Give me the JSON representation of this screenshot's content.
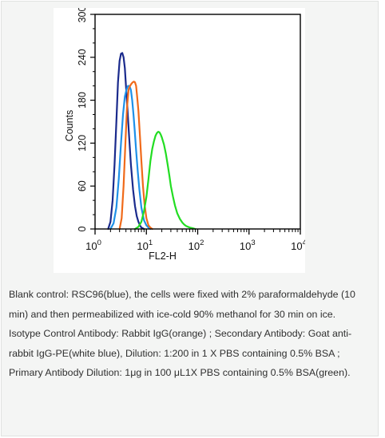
{
  "chart_data": {
    "type": "line",
    "xscale": "log",
    "xlim": [
      1,
      10000
    ],
    "ylim": [
      0,
      300
    ],
    "xlabel": "FL2-H",
    "ylabel": "Counts",
    "grid": false,
    "legend": "none",
    "y_ticks": [
      "0",
      "60",
      "120",
      "180",
      "240",
      "300"
    ],
    "x_ticks": [
      {
        "base": "10",
        "exp": "0"
      },
      {
        "base": "10",
        "exp": "1"
      },
      {
        "base": "10",
        "exp": "2"
      },
      {
        "base": "10",
        "exp": "3"
      },
      {
        "base": "10",
        "exp": "4"
      }
    ],
    "series": [
      {
        "color": "#1a2a8c",
        "x": [
          1.8,
          2.0,
          2.2,
          2.4,
          2.6,
          2.8,
          3.0,
          3.2,
          3.4,
          3.6,
          3.8,
          4.0,
          4.3,
          4.6,
          5.0,
          5.5,
          6.0,
          6.5,
          7.0,
          7.5,
          8.0,
          9.0
        ],
        "y": [
          0,
          10,
          40,
          90,
          150,
          205,
          235,
          245,
          246,
          240,
          225,
          200,
          165,
          130,
          90,
          55,
          32,
          18,
          10,
          5,
          2,
          0
        ]
      },
      {
        "color": "#1e90e8",
        "x": [
          2.0,
          2.3,
          2.6,
          2.9,
          3.2,
          3.5,
          3.8,
          4.1,
          4.4,
          4.7,
          5.0,
          5.3,
          5.6,
          5.9,
          6.3,
          6.8,
          7.3,
          8.0,
          9.0,
          10.0,
          11.0,
          12.0
        ],
        "y": [
          0,
          8,
          30,
          70,
          120,
          160,
          185,
          195,
          200,
          200,
          194,
          180,
          160,
          140,
          110,
          80,
          55,
          30,
          12,
          5,
          2,
          0
        ]
      },
      {
        "color": "#f06a1a",
        "x": [
          3.0,
          3.3,
          3.6,
          3.9,
          4.2,
          4.5,
          4.8,
          5.1,
          5.4,
          5.7,
          6.0,
          6.3,
          6.6,
          7.0,
          7.5,
          8.0,
          8.6,
          9.2,
          10.0,
          11.0,
          12.0,
          13.0
        ],
        "y": [
          0,
          15,
          60,
          120,
          170,
          195,
          200,
          203,
          205,
          206,
          205,
          200,
          185,
          165,
          130,
          95,
          60,
          35,
          15,
          5,
          2,
          0
        ]
      },
      {
        "color": "#22dd22",
        "x": [
          6.0,
          7.0,
          8.0,
          9.0,
          10.0,
          11.0,
          12.0,
          13.0,
          14.0,
          15.0,
          16.0,
          17.0,
          18.0,
          19.0,
          20.0,
          22.0,
          24.0,
          26.0,
          28.0,
          30.0,
          33.0,
          36.0,
          40.0,
          45.0,
          50.0,
          55.0,
          60.0,
          70.0,
          80.0,
          90.0
        ],
        "y": [
          0,
          3,
          10,
          25,
          45,
          70,
          95,
          112,
          122,
          130,
          134,
          136,
          135,
          132,
          128,
          118,
          105,
          90,
          75,
          60,
          45,
          33,
          22,
          14,
          9,
          6,
          4,
          2,
          1,
          0
        ]
      }
    ]
  },
  "caption": {
    "line1": "Blank control: RSC96(blue), the cells were fixed with 2% paraformaldehyde (10 min) and then permeabilized with ice-cold 90% methanol for 30 min on ice.",
    "line2": "Isotype Control Antibody: Rabbit IgG(orange) ; Secondary Antibody: Goat anti-rabbit IgG-PE(white blue), Dilution: 1:200 in 1 X PBS containing 0.5% BSA ; Primary Antibody Dilution: 1μg in 100 μL1X PBS containing 0.5% BSA(green)."
  }
}
